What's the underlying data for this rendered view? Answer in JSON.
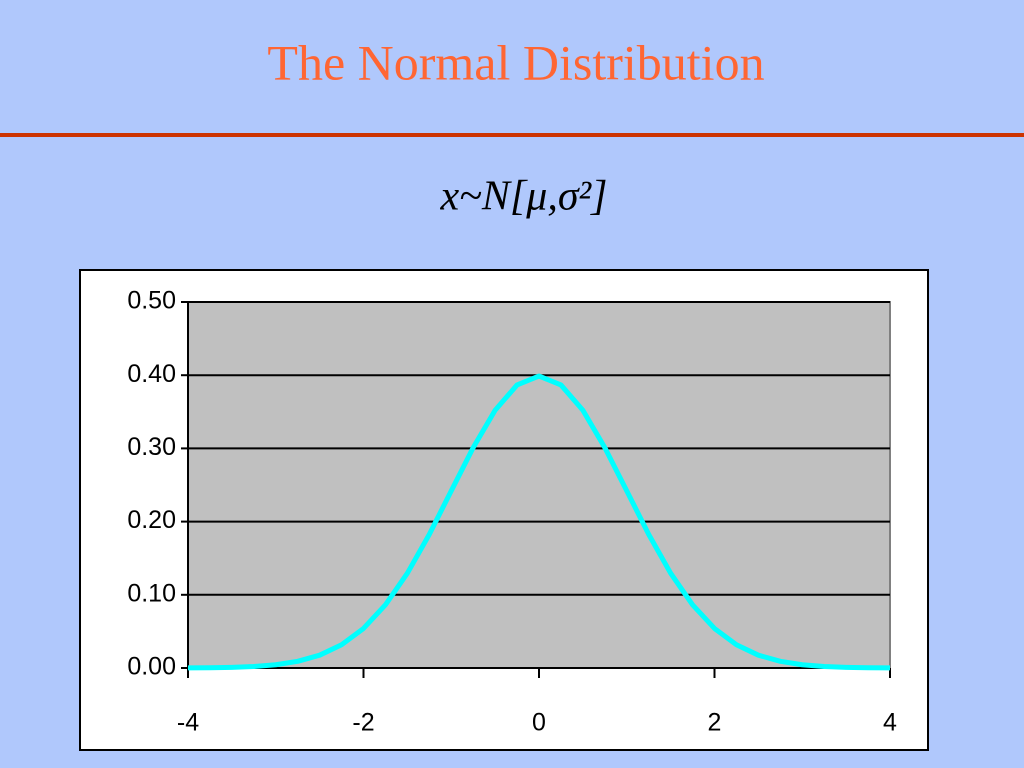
{
  "slide_title": "The Normal Distribution",
  "formula": "x~N[μ,σ²]",
  "chart_data": {
    "type": "line",
    "x": [
      -4,
      -3.75,
      -3.5,
      -3.25,
      -3,
      -2.75,
      -2.5,
      -2.25,
      -2,
      -1.75,
      -1.5,
      -1.25,
      -1,
      -0.75,
      -0.5,
      -0.25,
      0,
      0.25,
      0.5,
      0.75,
      1,
      1.25,
      1.5,
      1.75,
      2,
      2.25,
      2.5,
      2.75,
      3,
      3.25,
      3.5,
      3.75,
      4
    ],
    "values": [
      0.0001,
      0.0004,
      0.0009,
      0.002,
      0.0044,
      0.0091,
      0.0175,
      0.0317,
      0.054,
      0.0863,
      0.1295,
      0.1826,
      0.242,
      0.3011,
      0.3521,
      0.3867,
      0.3989,
      0.3867,
      0.3521,
      0.3011,
      0.242,
      0.1826,
      0.1295,
      0.0863,
      0.054,
      0.0317,
      0.0175,
      0.0091,
      0.0044,
      0.002,
      0.0009,
      0.0004,
      0.0001
    ],
    "color": "#00ffff",
    "xlim": [
      -4,
      4
    ],
    "xticks": [
      -4,
      -2,
      0,
      2,
      4
    ],
    "ylim": [
      0,
      0.5
    ],
    "yticks": [
      {
        "value": 0,
        "label": "0.00"
      },
      {
        "value": 0.1,
        "label": "0.10"
      },
      {
        "value": 0.2,
        "label": "0.20"
      },
      {
        "value": 0.3,
        "label": "0.30"
      },
      {
        "value": 0.4,
        "label": "0.40"
      },
      {
        "value": 0.5,
        "label": "0.50"
      }
    ],
    "grid": true
  }
}
